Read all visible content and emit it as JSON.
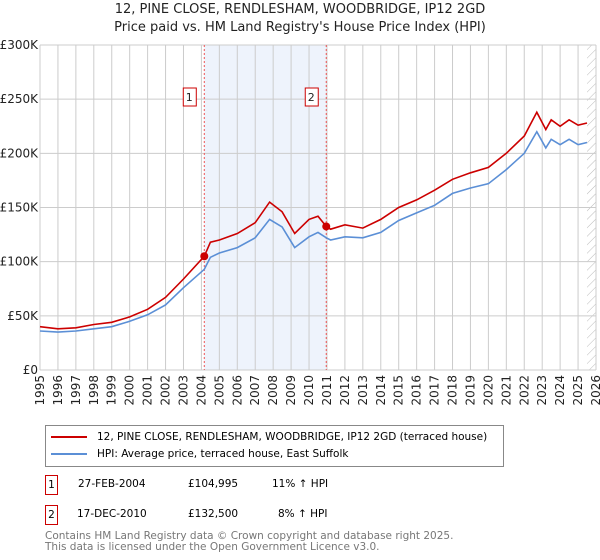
{
  "title": "12, PINE CLOSE, RENDLESHAM, WOODBRIDGE, IP12 2GD",
  "subtitle": "Price paid vs. HM Land Registry's House Price Index (HPI)",
  "chart_data": {
    "type": "line",
    "title": "12, PINE CLOSE, RENDLESHAM, WOODBRIDGE, IP12 2GD",
    "ylim": [
      0,
      300000
    ],
    "xlim": [
      1995,
      2026
    ],
    "yticks": [
      0,
      50000,
      100000,
      150000,
      200000,
      250000,
      300000
    ],
    "ytick_labels": [
      "£0",
      "£50K",
      "£100K",
      "£150K",
      "£200K",
      "£250K",
      "£300K"
    ],
    "xticks": [
      "1995",
      "1996",
      "1997",
      "1998",
      "1999",
      "2000",
      "2001",
      "2002",
      "2003",
      "2004",
      "2005",
      "2006",
      "2007",
      "2008",
      "2009",
      "2010",
      "2011",
      "2012",
      "2013",
      "2014",
      "2015",
      "2016",
      "2017",
      "2018",
      "2019",
      "2020",
      "2021",
      "2022",
      "2023",
      "2024",
      "2025",
      "2026"
    ],
    "grid": true,
    "shaded_range": [
      2004.16,
      2010.96
    ],
    "forecast_hatch_from": 2025.5,
    "series": [
      {
        "name": "12, PINE CLOSE, RENDLESHAM, WOODBRIDGE, IP12 2GD (terraced house)",
        "color": "#cc0000",
        "x": [
          1995,
          1996,
          1997,
          1998,
          1999,
          2000,
          2001,
          2002,
          2003,
          2004.16,
          2004.5,
          2005,
          2006,
          2007,
          2007.8,
          2008.5,
          2009.2,
          2010,
          2010.5,
          2010.96,
          2011.2,
          2012,
          2013,
          2014,
          2015,
          2016,
          2017,
          2018,
          2019,
          2020,
          2021,
          2022,
          2022.7,
          2023.2,
          2023.5,
          2024,
          2024.5,
          2025,
          2025.5
        ],
        "y": [
          40000,
          38000,
          39000,
          42000,
          44000,
          49000,
          56000,
          67000,
          84000,
          104995,
          118000,
          120000,
          126000,
          136000,
          155000,
          146000,
          126000,
          139000,
          142000,
          132500,
          130000,
          134000,
          131000,
          139000,
          150000,
          157000,
          166000,
          176000,
          182000,
          187000,
          200000,
          216000,
          238000,
          222000,
          231000,
          225000,
          231000,
          226000,
          228000
        ]
      },
      {
        "name": "HPI: Average price, terraced house, East Suffolk",
        "color": "#5b8fd6",
        "x": [
          1995,
          1996,
          1997,
          1998,
          1999,
          2000,
          2001,
          2002,
          2003,
          2004.16,
          2004.5,
          2005,
          2006,
          2007,
          2007.8,
          2008.5,
          2009.2,
          2010,
          2010.5,
          2010.96,
          2011.2,
          2012,
          2013,
          2014,
          2015,
          2016,
          2017,
          2018,
          2019,
          2020,
          2021,
          2022,
          2022.7,
          2023.2,
          2023.5,
          2024,
          2024.5,
          2025,
          2025.5
        ],
        "y": [
          36000,
          35000,
          36000,
          38000,
          40000,
          45000,
          51000,
          60000,
          76000,
          93000,
          104000,
          108000,
          113000,
          122000,
          139000,
          132000,
          113000,
          123000,
          127000,
          122000,
          120000,
          123000,
          122000,
          127000,
          138000,
          145000,
          152000,
          163000,
          168000,
          172000,
          185000,
          200000,
          220000,
          205000,
          213000,
          208000,
          213000,
          208000,
          210000
        ]
      }
    ],
    "markers": [
      {
        "label": "1",
        "x": 2004.16,
        "y": 104995
      },
      {
        "label": "2",
        "x": 2010.96,
        "y": 132500
      }
    ]
  },
  "legend": {
    "property": "12, PINE CLOSE, RENDLESHAM, WOODBRIDGE, IP12 2GD (terraced house)",
    "hpi": "HPI: Average price, terraced house, East Suffolk"
  },
  "transactions": [
    {
      "num": "1",
      "date": "27-FEB-2004",
      "price": "£104,995",
      "hpi": "11% ↑ HPI"
    },
    {
      "num": "2",
      "date": "17-DEC-2010",
      "price": "£132,500",
      "hpi": "8% ↑ HPI"
    }
  ],
  "footer": {
    "line1": "Contains HM Land Registry data © Crown copyright and database right 2025.",
    "line2": "This data is licensed under the Open Government Licence v3.0."
  }
}
